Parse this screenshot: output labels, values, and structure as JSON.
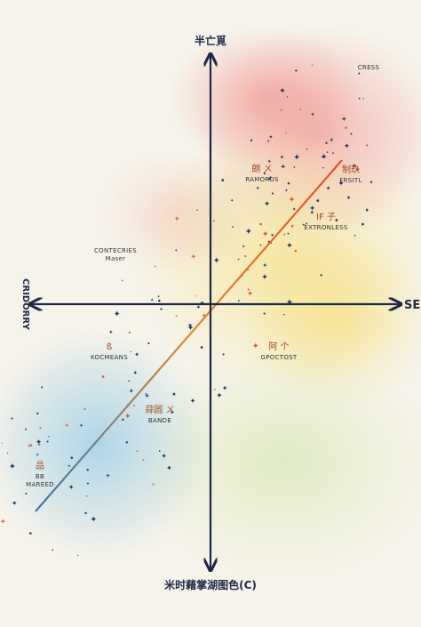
{
  "axes": {
    "top": "半亡覓",
    "right": "SE",
    "left": "CRIDORRY",
    "bottom": "米时藉掌湖图色(C)"
  },
  "labels": [
    {
      "glyph": "",
      "text": "CRESS"
    },
    {
      "glyph": "朗 ㄨ",
      "text": "RAMORUS"
    },
    {
      "glyph": "制玖",
      "text": "FRSITL"
    },
    {
      "glyph": "IF 子",
      "text": "EXTRONLESS"
    },
    {
      "glyph": "",
      "text": "CONTECRIES",
      "sub": "Maser"
    },
    {
      "glyph": "ß",
      "text": "KOCMEANS"
    },
    {
      "glyph": "阿 个",
      "text": "GPOCTOST"
    },
    {
      "glyph": "蒜圆 ㄨ",
      "text": "BANDE"
    },
    {
      "glyph": "品",
      "text": "BB",
      "sub": "MAREED"
    }
  ]
}
